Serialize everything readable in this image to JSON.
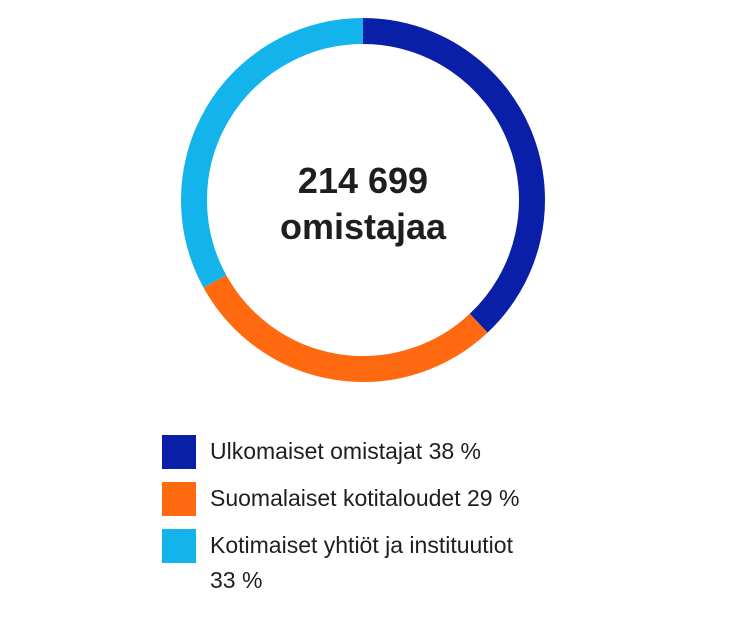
{
  "center": {
    "line1": "214 699",
    "line2": "omistajaa"
  },
  "chart_data": {
    "type": "pie",
    "variant": "donut",
    "start": "top",
    "direction": "clockwise",
    "slices": [
      {
        "label": "Ulkomaiset omistajat 38 %",
        "value": 38,
        "color": "#0a1fa8"
      },
      {
        "label": "Suomalaiset kotitaloudet 29 %",
        "value": 29,
        "color": "#ff6a10"
      },
      {
        "label": "Kotimaiset yhtiöt ja instituutiot 33 %",
        "value": 33,
        "color": "#12b4eb"
      }
    ],
    "legend_position": "bottom"
  }
}
